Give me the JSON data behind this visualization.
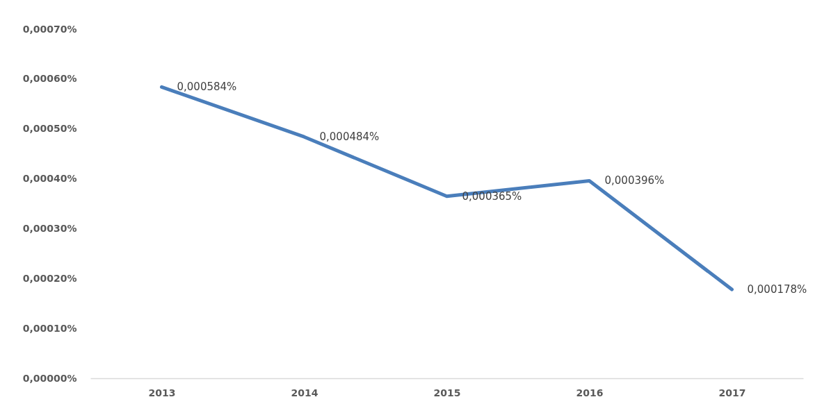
{
  "chart_data": {
    "type": "line",
    "categories": [
      "2013",
      "2014",
      "2015",
      "2016",
      "2017"
    ],
    "series": [
      {
        "color": "#4a7ebb",
        "values": [
          0.000584,
          0.000484,
          0.000365,
          0.000396,
          0.000178
        ],
        "value_labels": [
          "0,000584%",
          "0,000484%",
          "0,000365%",
          "0,000396%",
          "0,000178%"
        ]
      }
    ],
    "ylim": [
      0,
      0.0007
    ],
    "yticks": [
      {
        "value": 0,
        "label": "0,00000%"
      },
      {
        "value": 0.0001,
        "label": "0,00010%"
      },
      {
        "value": 0.0002,
        "label": "0,00020%"
      },
      {
        "value": 0.0003,
        "label": "0,00030%"
      },
      {
        "value": 0.0004,
        "label": "0,00040%"
      },
      {
        "value": 0.0005,
        "label": "0,00050%"
      },
      {
        "value": 0.0006,
        "label": "0,00060%"
      },
      {
        "value": 0.0007,
        "label": "0,00070%"
      }
    ],
    "line_style": "solid"
  }
}
